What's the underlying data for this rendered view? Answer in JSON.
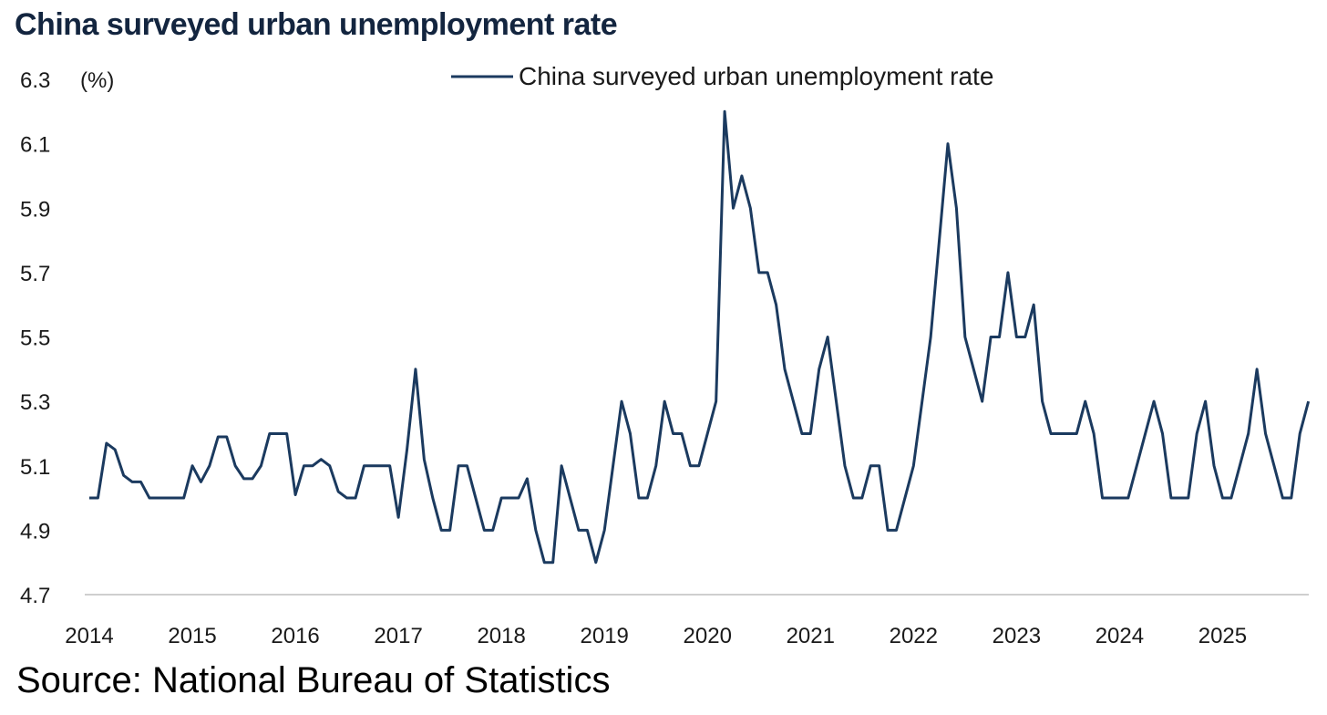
{
  "title": "China surveyed urban unemployment rate",
  "source": "Source: National Bureau of Statistics",
  "colors": {
    "series": "#1b3a5f",
    "axis": "#cfcfcf",
    "title": "#13253f"
  },
  "chart_data": {
    "type": "line",
    "title": "China surveyed urban unemployment rate",
    "xlabel": "",
    "ylabel": "(%)",
    "ylim": [
      4.7,
      6.3
    ],
    "yticks": [
      4.7,
      4.9,
      5.1,
      5.3,
      5.5,
      5.7,
      5.9,
      6.1,
      6.3
    ],
    "ytick_labels": [
      "4.7",
      "4.9",
      "5.1",
      "5.3",
      "5.5",
      "5.7",
      "5.9",
      "6.1",
      "6.3"
    ],
    "xticks": [
      "2014",
      "2015",
      "2016",
      "2017",
      "2018",
      "2019",
      "2020",
      "2021",
      "2022",
      "2023",
      "2024",
      "2025"
    ],
    "legend": [
      "China surveyed urban unemployment rate"
    ],
    "legend_position": "top",
    "grid": false,
    "series": [
      {
        "name": "China surveyed urban unemployment rate",
        "start": "2014-01",
        "frequency": "monthly",
        "values": [
          5.0,
          5.0,
          5.17,
          5.15,
          5.07,
          5.05,
          5.05,
          5.0,
          5.0,
          5.0,
          5.0,
          5.0,
          5.1,
          5.05,
          5.1,
          5.19,
          5.19,
          5.1,
          5.06,
          5.06,
          5.1,
          5.2,
          5.2,
          5.2,
          5.01,
          5.1,
          5.1,
          5.12,
          5.1,
          5.02,
          5.0,
          5.0,
          5.1,
          5.1,
          5.1,
          5.1,
          4.94,
          5.15,
          5.4,
          5.12,
          5.0,
          4.9,
          4.9,
          5.1,
          5.1,
          5.0,
          4.9,
          4.9,
          5.0,
          5.0,
          5.0,
          5.06,
          4.9,
          4.8,
          4.8,
          5.1,
          5.0,
          4.9,
          4.9,
          4.8,
          4.9,
          5.1,
          5.3,
          5.2,
          5.0,
          5.0,
          5.1,
          5.3,
          5.2,
          5.2,
          5.1,
          5.1,
          5.2,
          5.3,
          6.2,
          5.9,
          6.0,
          5.9,
          5.7,
          5.7,
          5.6,
          5.4,
          5.3,
          5.2,
          5.2,
          5.4,
          5.5,
          5.3,
          5.1,
          5.0,
          5.0,
          5.1,
          5.1,
          4.9,
          4.9,
          5.0,
          5.1,
          5.3,
          5.5,
          5.8,
          6.1,
          5.9,
          5.5,
          5.4,
          5.3,
          5.5,
          5.5,
          5.7,
          5.5,
          5.5,
          5.6,
          5.3,
          5.2,
          5.2,
          5.2,
          5.2,
          5.3,
          5.2,
          5.0,
          5.0,
          5.0,
          5.0,
          5.1,
          5.2,
          5.3,
          5.2,
          5.0,
          5.0,
          5.0,
          5.2,
          5.3,
          5.1,
          5.0,
          5.0,
          5.1,
          5.2,
          5.4,
          5.2,
          5.1,
          5.0,
          5.0,
          5.2,
          5.3
        ]
      }
    ]
  }
}
